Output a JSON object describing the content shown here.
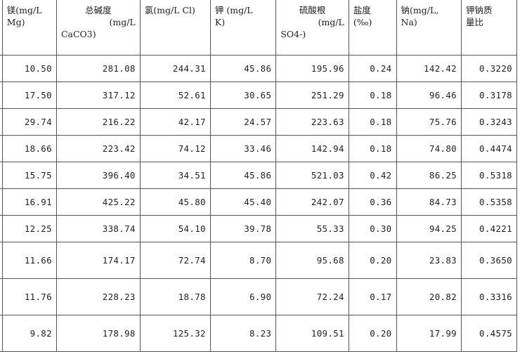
{
  "table": {
    "headers": [
      {
        "lines": [
          "",
          ""
        ]
      },
      {
        "lines": [
          "镁(mg/L",
          "Mg)"
        ]
      },
      {
        "lines": [
          "总碱度",
          "(mg/L",
          "CaCO3)"
        ]
      },
      {
        "lines": [
          "氯(mg/L Cl)"
        ]
      },
      {
        "lines": [
          "钾 (mg/L",
          "K)"
        ]
      },
      {
        "lines": [
          "硫酸根",
          "(mg/L",
          "SO4-)"
        ]
      },
      {
        "lines": [
          "盐度",
          "(‰)"
        ]
      },
      {
        "lines": [
          "钠(mg/L,",
          "Na)"
        ]
      },
      {
        "lines": [
          "钾钠质",
          "量比"
        ]
      }
    ],
    "rows": [
      [
        "",
        "10.50",
        "281.08",
        "244.31",
        "45.86",
        "195.96",
        "0.24",
        "142.42",
        "0.3220"
      ],
      [
        "",
        "17.50",
        "317.12",
        "52.61",
        "30.65",
        "251.29",
        "0.18",
        "96.46",
        "0.3178"
      ],
      [
        "",
        "29.74",
        "216.22",
        "42.17",
        "24.57",
        "223.63",
        "0.18",
        "75.76",
        "0.3243"
      ],
      [
        "",
        "18.66",
        "223.42",
        "74.12",
        "33.46",
        "142.94",
        "0.18",
        "74.80",
        "0.4474"
      ],
      [
        "",
        "15.75",
        "396.40",
        "34.51",
        "45.86",
        "521.03",
        "0.42",
        "86.25",
        "0.5318"
      ],
      [
        "",
        "16.91",
        "425.22",
        "45.80",
        "45.40",
        "242.07",
        "0.36",
        "84.73",
        "0.5358"
      ],
      [
        "",
        "12.25",
        "338.74",
        "54.10",
        "39.78",
        "55.33",
        "0.30",
        "94.25",
        "0.4221"
      ],
      [
        "",
        "11.66",
        "174.17",
        "72.74",
        "8.70",
        "95.68",
        "0.20",
        "23.83",
        "0.3650"
      ],
      [
        "",
        "11.76",
        "228.23",
        "18.78",
        "6.90",
        "72.24",
        "0.17",
        "20.82",
        "0.3316"
      ],
      [
        "",
        "9.82",
        "178.98",
        "125.32",
        "8.23",
        "109.51",
        "0.20",
        "17.99",
        "0.4575"
      ]
    ]
  }
}
